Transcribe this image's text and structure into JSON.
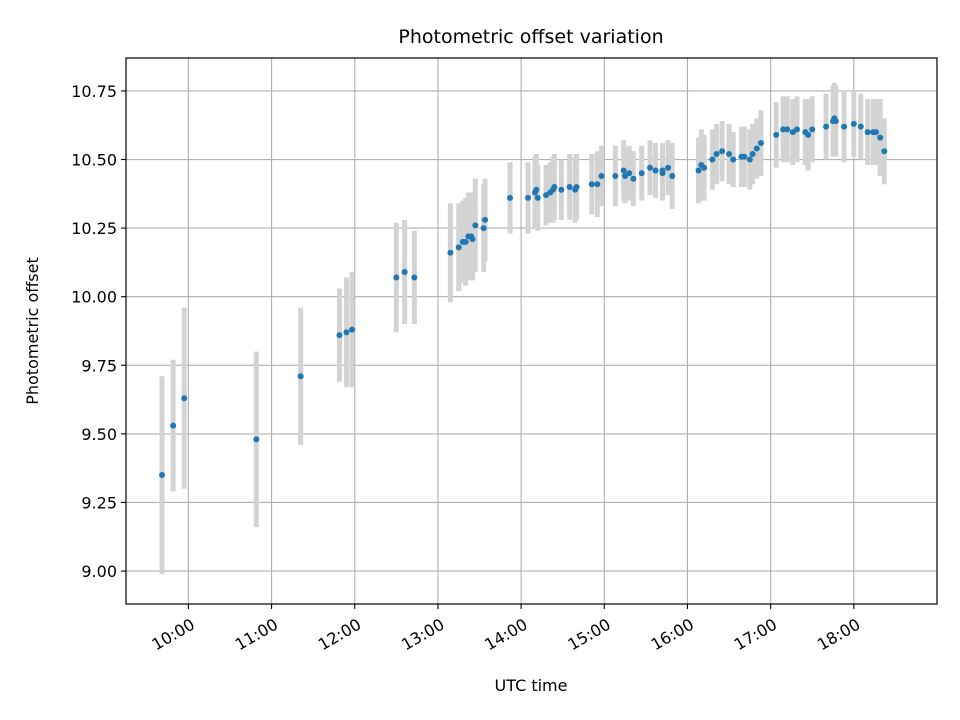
{
  "chart_data": {
    "type": "scatter",
    "title": "Photometric offset variation",
    "xlabel": "UTC time",
    "ylabel": "Photometric offset",
    "x_axis_type": "time",
    "xlim": [
      "09:15",
      "19:00"
    ],
    "ylim": [
      8.88,
      10.87
    ],
    "x_ticks": [
      "10:00",
      "11:00",
      "12:00",
      "13:00",
      "14:00",
      "15:00",
      "16:00",
      "17:00",
      "18:00"
    ],
    "y_ticks": [
      "9.00",
      "9.25",
      "9.50",
      "9.75",
      "10.00",
      "10.25",
      "10.50",
      "10.75"
    ],
    "y_tick_values": [
      9.0,
      9.25,
      9.5,
      9.75,
      10.0,
      10.25,
      10.5,
      10.75
    ],
    "grid": true,
    "colors": {
      "point": "#1f77b4",
      "error_bar": "#d3d3d3",
      "grid": "#b0b0b0"
    },
    "series": [
      {
        "x": [
          "09:41",
          "09:49",
          "09:57",
          "10:49",
          "11:21",
          "11:49",
          "11:54",
          "11:58",
          "12:30",
          "12:36",
          "12:43",
          "13:09",
          "13:15",
          "13:18",
          "13:20",
          "13:22",
          "13:24",
          "13:25",
          "13:27",
          "13:33",
          "13:34",
          "13:52",
          "14:05",
          "14:10",
          "14:11",
          "14:12",
          "14:18",
          "14:21",
          "14:23",
          "14:24",
          "14:29",
          "14:35",
          "14:39",
          "14:40",
          "14:51",
          "14:55",
          "14:58",
          "15:08",
          "15:14",
          "15:15",
          "15:18",
          "15:21",
          "15:27",
          "15:33",
          "15:37",
          "15:42",
          "15:42",
          "15:46",
          "15:49",
          "16:08",
          "16:10",
          "16:12",
          "16:18",
          "16:21",
          "16:25",
          "16:30",
          "16:33",
          "16:39",
          "16:41",
          "16:45",
          "16:47",
          "16:50",
          "16:53",
          "17:04",
          "17:09",
          "17:12",
          "17:16",
          "17:19",
          "17:25",
          "17:27",
          "17:30",
          "17:40",
          "17:45",
          "17:46",
          "17:47",
          "17:53",
          "18:00",
          "18:05",
          "18:10",
          "18:14",
          "18:16",
          "18:19",
          "18:22"
        ],
        "y": [
          9.35,
          9.53,
          9.63,
          9.48,
          9.71,
          9.86,
          9.87,
          9.88,
          10.07,
          10.09,
          10.07,
          10.16,
          10.18,
          10.2,
          10.2,
          10.22,
          10.22,
          10.21,
          10.26,
          10.25,
          10.28,
          10.36,
          10.36,
          10.38,
          10.39,
          10.36,
          10.37,
          10.38,
          10.39,
          10.4,
          10.39,
          10.4,
          10.39,
          10.4,
          10.41,
          10.41,
          10.44,
          10.44,
          10.46,
          10.44,
          10.45,
          10.43,
          10.45,
          10.47,
          10.46,
          10.45,
          10.46,
          10.47,
          10.44,
          10.46,
          10.48,
          10.47,
          10.5,
          10.52,
          10.53,
          10.52,
          10.5,
          10.51,
          10.51,
          10.5,
          10.52,
          10.54,
          10.56,
          10.59,
          10.61,
          10.61,
          10.6,
          10.61,
          10.6,
          10.59,
          10.61,
          10.62,
          10.64,
          10.65,
          10.64,
          10.62,
          10.63,
          10.62,
          10.6,
          10.6,
          10.6,
          10.58,
          10.53
        ],
        "error": [
          0.36,
          0.24,
          0.33,
          0.32,
          0.25,
          0.17,
          0.2,
          0.21,
          0.2,
          0.19,
          0.17,
          0.18,
          0.16,
          0.15,
          0.16,
          0.16,
          0.16,
          0.15,
          0.17,
          0.16,
          0.15,
          0.13,
          0.13,
          0.13,
          0.13,
          0.12,
          0.11,
          0.11,
          0.12,
          0.12,
          0.11,
          0.12,
          0.12,
          0.12,
          0.11,
          0.12,
          0.11,
          0.11,
          0.11,
          0.1,
          0.1,
          0.1,
          0.1,
          0.1,
          0.1,
          0.1,
          0.1,
          0.1,
          0.12,
          0.12,
          0.13,
          0.12,
          0.11,
          0.11,
          0.11,
          0.11,
          0.1,
          0.11,
          0.11,
          0.11,
          0.11,
          0.11,
          0.12,
          0.12,
          0.12,
          0.12,
          0.12,
          0.12,
          0.12,
          0.13,
          0.12,
          0.12,
          0.13,
          0.13,
          0.13,
          0.13,
          0.12,
          0.12,
          0.12,
          0.12,
          0.12,
          0.14,
          0.12
        ]
      }
    ]
  }
}
